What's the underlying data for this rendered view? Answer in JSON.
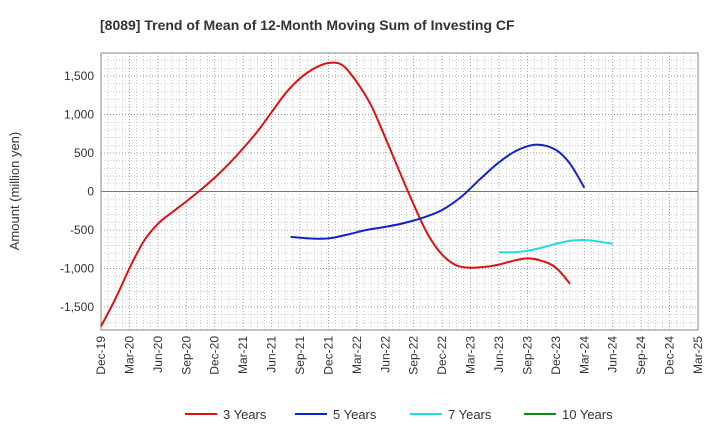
{
  "chart_data": {
    "type": "line",
    "title": "[8089]  Trend of Mean of 12-Month Moving Sum of Investing CF",
    "xlabel": "",
    "ylabel": "Amount (million yen)",
    "ylim": [
      -1800,
      1800
    ],
    "yticks": [
      1500,
      1000,
      500,
      0,
      -500,
      -1000,
      -1500
    ],
    "ytick_labels": [
      "1,500",
      "1,000",
      "500",
      "0",
      "-500",
      "-1,000",
      "-1,500"
    ],
    "categories": [
      "Dec-19",
      "Mar-20",
      "Jun-20",
      "Sep-20",
      "Dec-20",
      "Mar-21",
      "Jun-21",
      "Sep-21",
      "Dec-21",
      "Mar-22",
      "Jun-22",
      "Sep-22",
      "Dec-22",
      "Mar-23",
      "Jun-23",
      "Sep-23",
      "Dec-23",
      "Mar-24",
      "Jun-24",
      "Sep-24",
      "Dec-24",
      "Mar-25"
    ],
    "grid": true,
    "legend_position": "bottom",
    "series": [
      {
        "name": "3 Years",
        "color": "#dd1111",
        "points": [
          [
            0,
            -1750
          ],
          [
            0.5,
            -1400
          ],
          [
            1,
            -1000
          ],
          [
            1.5,
            -650
          ],
          [
            2,
            -420
          ],
          [
            2.5,
            -270
          ],
          [
            3,
            -130
          ],
          [
            3.5,
            20
          ],
          [
            4,
            180
          ],
          [
            4.5,
            360
          ],
          [
            5,
            560
          ],
          [
            5.5,
            780
          ],
          [
            6,
            1030
          ],
          [
            6.5,
            1280
          ],
          [
            7,
            1470
          ],
          [
            7.5,
            1600
          ],
          [
            8,
            1670
          ],
          [
            8.5,
            1640
          ],
          [
            9,
            1420
          ],
          [
            9.5,
            1120
          ],
          [
            10,
            700
          ],
          [
            10.5,
            260
          ],
          [
            11,
            -170
          ],
          [
            11.5,
            -560
          ],
          [
            12,
            -820
          ],
          [
            12.5,
            -960
          ],
          [
            13,
            -990
          ],
          [
            13.5,
            -980
          ],
          [
            14,
            -950
          ],
          [
            14.5,
            -900
          ],
          [
            15,
            -870
          ],
          [
            15.5,
            -900
          ],
          [
            16,
            -990
          ],
          [
            16.5,
            -1200
          ]
        ]
      },
      {
        "name": "5 Years",
        "color": "#1122cc",
        "points": [
          [
            6.67,
            -590
          ],
          [
            7.33,
            -610
          ],
          [
            8,
            -610
          ],
          [
            8.67,
            -560
          ],
          [
            9.33,
            -500
          ],
          [
            10,
            -460
          ],
          [
            10.67,
            -410
          ],
          [
            11.33,
            -340
          ],
          [
            12,
            -240
          ],
          [
            12.67,
            -70
          ],
          [
            13.33,
            160
          ],
          [
            14,
            380
          ],
          [
            14.67,
            540
          ],
          [
            15.33,
            610
          ],
          [
            16,
            540
          ],
          [
            16.5,
            360
          ],
          [
            17,
            50
          ]
        ]
      },
      {
        "name": "7 Years",
        "color": "#22dddd",
        "points": [
          [
            14,
            -790
          ],
          [
            14.5,
            -790
          ],
          [
            15,
            -770
          ],
          [
            15.5,
            -730
          ],
          [
            16,
            -680
          ],
          [
            16.5,
            -640
          ],
          [
            17,
            -630
          ],
          [
            17.5,
            -650
          ],
          [
            18,
            -680
          ]
        ]
      },
      {
        "name": "10 Years",
        "color": "#118811",
        "points": []
      }
    ]
  }
}
